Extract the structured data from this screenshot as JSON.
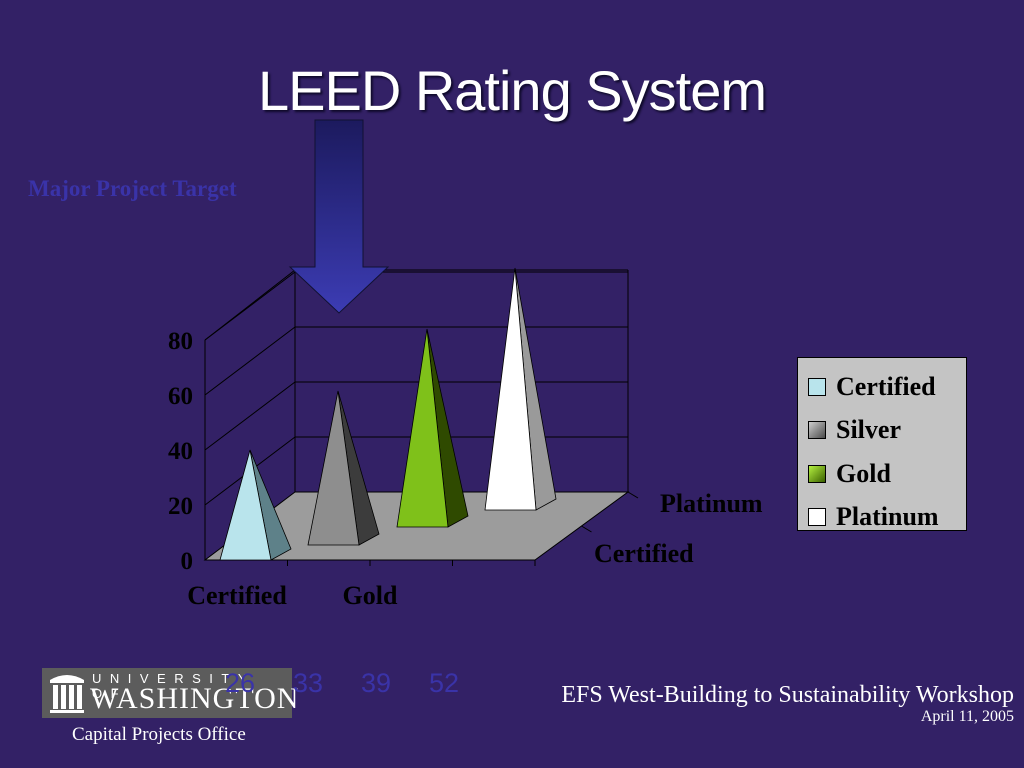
{
  "title": "LEED Rating System",
  "annotation": {
    "target_label": "Major Project Target",
    "arrow_points_to": "Silver"
  },
  "chart_data": {
    "type": "bar",
    "style": "3d-pyramid",
    "categories": [
      "Certified",
      "Silver",
      "Gold",
      "Platinum"
    ],
    "values": [
      40,
      56,
      72,
      88
    ],
    "x_tick_labels": [
      "Certified",
      "Gold"
    ],
    "depth_axis_labels": [
      "Certified",
      "Platinum"
    ],
    "y_ticks": [
      "0",
      "20",
      "40",
      "60",
      "80"
    ],
    "ylim": [
      0,
      80
    ],
    "grid": true,
    "legend_position": "right",
    "legend": [
      {
        "label": "Certified",
        "color": "#b9e4ec"
      },
      {
        "label": "Silver",
        "color": "#8a8a8a"
      },
      {
        "label": "Gold",
        "color": "#76b400"
      },
      {
        "label": "Platinum",
        "color": "#ffffff"
      }
    ],
    "series_colors": {
      "Certified": {
        "light": "#b9e4ec",
        "dark": "#5e8189"
      },
      "Silver": {
        "light": "#8e8e8e",
        "dark": "#3c3c3c"
      },
      "Gold": {
        "light": "#7fc11a",
        "dark": "#2f4a00"
      },
      "Platinum": {
        "light": "#ffffff",
        "dark": "#9a9a9a"
      }
    },
    "colors": {
      "floor": "#9c9c9c",
      "wall_lines": "#000000"
    }
  },
  "point_scores": [
    "26",
    "33",
    "39",
    "52"
  ],
  "footer": {
    "logo_top": "UNIVERSITY OF",
    "logo_bottom": "WASHINGTON",
    "office": "Capital Projects Office",
    "workshop": "EFS West-Building to Sustainability Workshop",
    "date": "April 11, 2005"
  }
}
